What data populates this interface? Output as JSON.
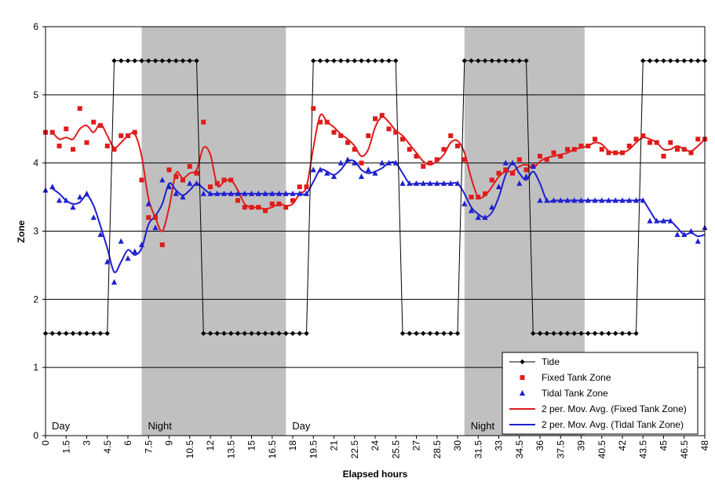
{
  "chart_data": {
    "type": "line",
    "title": "",
    "xlabel": "Elapsed hours",
    "ylabel": "Zone",
    "xlim": [
      0,
      48
    ],
    "ylim": [
      0,
      6
    ],
    "yticks": [
      "0",
      "1",
      "2",
      "3",
      "4",
      "5",
      "6"
    ],
    "xticks": [
      "0",
      "1.5",
      "3",
      "4.5",
      "6",
      "7.5",
      "9",
      "10.5",
      "12",
      "13.5",
      "15",
      "16.5",
      "18",
      "19.5",
      "21",
      "22.5",
      "24",
      "25.5",
      "27",
      "28.5",
      "30",
      "31.5",
      "33",
      "34.5",
      "36",
      "37.5",
      "39",
      "40.5",
      "42",
      "43.5",
      "45",
      "46.5",
      "48"
    ],
    "grid": "horizontal",
    "legend_position": "bottom-right",
    "bands": [
      {
        "label": "Day",
        "start": 0,
        "end": 7,
        "shaded": false
      },
      {
        "label": "Night",
        "start": 7,
        "end": 17.5,
        "shaded": true
      },
      {
        "label": "Day",
        "start": 17.5,
        "end": 30.5,
        "shaded": false
      },
      {
        "label": "Night",
        "start": 30.5,
        "end": 39.25,
        "shaded": true
      }
    ],
    "series": [
      {
        "name": "Tide",
        "type": "line-marker",
        "color": "#000000",
        "marker": "diamond",
        "points": [
          [
            0,
            1.5
          ],
          [
            0.5,
            1.5
          ],
          [
            1,
            1.5
          ],
          [
            1.5,
            1.5
          ],
          [
            2,
            1.5
          ],
          [
            2.5,
            1.5
          ],
          [
            3,
            1.5
          ],
          [
            3.5,
            1.5
          ],
          [
            4,
            1.5
          ],
          [
            4.5,
            1.5
          ],
          [
            5,
            5.5
          ],
          [
            5.5,
            5.5
          ],
          [
            6,
            5.5
          ],
          [
            6.5,
            5.5
          ],
          [
            7,
            5.5
          ],
          [
            7.5,
            5.5
          ],
          [
            8,
            5.5
          ],
          [
            8.5,
            5.5
          ],
          [
            9,
            5.5
          ],
          [
            9.5,
            5.5
          ],
          [
            10,
            5.5
          ],
          [
            10.5,
            5.5
          ],
          [
            11,
            5.5
          ],
          [
            11.5,
            1.5
          ],
          [
            12,
            1.5
          ],
          [
            12.5,
            1.5
          ],
          [
            13,
            1.5
          ],
          [
            13.5,
            1.5
          ],
          [
            14,
            1.5
          ],
          [
            14.5,
            1.5
          ],
          [
            15,
            1.5
          ],
          [
            15.5,
            1.5
          ],
          [
            16,
            1.5
          ],
          [
            16.5,
            1.5
          ],
          [
            17,
            1.5
          ],
          [
            17.5,
            1.5
          ],
          [
            18,
            1.5
          ],
          [
            18.5,
            1.5
          ],
          [
            19,
            1.5
          ],
          [
            19.5,
            5.5
          ],
          [
            20,
            5.5
          ],
          [
            20.5,
            5.5
          ],
          [
            21,
            5.5
          ],
          [
            21.5,
            5.5
          ],
          [
            22,
            5.5
          ],
          [
            22.5,
            5.5
          ],
          [
            23,
            5.5
          ],
          [
            23.5,
            5.5
          ],
          [
            24,
            5.5
          ],
          [
            24.5,
            5.5
          ],
          [
            25,
            5.5
          ],
          [
            25.5,
            5.5
          ],
          [
            26,
            1.5
          ],
          [
            26.5,
            1.5
          ],
          [
            27,
            1.5
          ],
          [
            27.5,
            1.5
          ],
          [
            28,
            1.5
          ],
          [
            28.5,
            1.5
          ],
          [
            29,
            1.5
          ],
          [
            29.5,
            1.5
          ],
          [
            30,
            1.5
          ],
          [
            30.5,
            5.5
          ],
          [
            31,
            5.5
          ],
          [
            31.5,
            5.5
          ],
          [
            32,
            5.5
          ],
          [
            32.5,
            5.5
          ],
          [
            33,
            5.5
          ],
          [
            33.5,
            5.5
          ],
          [
            34,
            5.5
          ],
          [
            34.5,
            5.5
          ],
          [
            35,
            5.5
          ],
          [
            35.5,
            1.5
          ],
          [
            36,
            1.5
          ],
          [
            36.5,
            1.5
          ],
          [
            37,
            1.5
          ],
          [
            37.5,
            1.5
          ],
          [
            38,
            1.5
          ],
          [
            38.5,
            1.5
          ],
          [
            39,
            1.5
          ],
          [
            39.5,
            1.5
          ],
          [
            40,
            1.5
          ],
          [
            40.5,
            1.5
          ],
          [
            41,
            1.5
          ],
          [
            41.5,
            1.5
          ],
          [
            42,
            1.5
          ],
          [
            42.5,
            1.5
          ],
          [
            43,
            1.5
          ],
          [
            43.5,
            5.5
          ],
          [
            44,
            5.5
          ],
          [
            44.5,
            5.5
          ],
          [
            45,
            5.5
          ],
          [
            45.5,
            5.5
          ],
          [
            46,
            5.5
          ],
          [
            46.5,
            5.5
          ],
          [
            47,
            5.5
          ],
          [
            47.5,
            5.5
          ],
          [
            48,
            5.5
          ]
        ]
      },
      {
        "name": "Fixed Tank Zone",
        "type": "scatter",
        "color": "#e01b1b",
        "marker": "square",
        "points": [
          [
            0,
            4.45
          ],
          [
            0.5,
            4.45
          ],
          [
            1,
            4.25
          ],
          [
            1.5,
            4.5
          ],
          [
            2,
            4.2
          ],
          [
            2.5,
            4.8
          ],
          [
            3,
            4.3
          ],
          [
            3.5,
            4.6
          ],
          [
            4,
            4.55
          ],
          [
            4.5,
            4.25
          ],
          [
            5,
            4.2
          ],
          [
            5.5,
            4.4
          ],
          [
            6,
            4.4
          ],
          [
            6.5,
            4.45
          ],
          [
            7,
            3.75
          ],
          [
            7.5,
            3.2
          ],
          [
            8,
            3.2
          ],
          [
            8.5,
            2.8
          ],
          [
            9,
            3.9
          ],
          [
            9.5,
            3.8
          ],
          [
            10,
            3.75
          ],
          [
            10.5,
            3.95
          ],
          [
            11,
            3.85
          ],
          [
            11.5,
            4.6
          ],
          [
            12,
            3.65
          ],
          [
            12.5,
            3.7
          ],
          [
            13,
            3.75
          ],
          [
            13.5,
            3.75
          ],
          [
            14,
            3.45
          ],
          [
            14.5,
            3.35
          ],
          [
            15,
            3.35
          ],
          [
            15.5,
            3.35
          ],
          [
            16,
            3.3
          ],
          [
            16.5,
            3.4
          ],
          [
            17,
            3.4
          ],
          [
            17.5,
            3.35
          ],
          [
            18,
            3.45
          ],
          [
            18.5,
            3.65
          ],
          [
            19,
            3.65
          ],
          [
            19.5,
            4.8
          ],
          [
            20,
            4.6
          ],
          [
            20.5,
            4.6
          ],
          [
            21,
            4.45
          ],
          [
            21.5,
            4.4
          ],
          [
            22,
            4.3
          ],
          [
            22.5,
            4.2
          ],
          [
            23,
            4
          ],
          [
            23.5,
            4.4
          ],
          [
            24,
            4.65
          ],
          [
            24.5,
            4.7
          ],
          [
            25,
            4.5
          ],
          [
            25.5,
            4.45
          ],
          [
            26,
            4.35
          ],
          [
            26.5,
            4.2
          ],
          [
            27,
            4.1
          ],
          [
            27.5,
            3.95
          ],
          [
            28,
            4
          ],
          [
            28.5,
            4.05
          ],
          [
            29,
            4.2
          ],
          [
            29.5,
            4.4
          ],
          [
            30,
            4.25
          ],
          [
            30.5,
            4.05
          ],
          [
            31,
            3.5
          ],
          [
            31.5,
            3.5
          ],
          [
            32,
            3.55
          ],
          [
            32.5,
            3.75
          ],
          [
            33,
            3.85
          ],
          [
            33.5,
            3.9
          ],
          [
            34,
            3.85
          ],
          [
            34.5,
            4.05
          ],
          [
            35,
            3.9
          ],
          [
            35.5,
            3.95
          ],
          [
            36,
            4.1
          ],
          [
            36.5,
            4.05
          ],
          [
            37,
            4.15
          ],
          [
            37.5,
            4.1
          ],
          [
            38,
            4.2
          ],
          [
            38.5,
            4.2
          ],
          [
            39,
            4.25
          ],
          [
            39.5,
            4.25
          ],
          [
            40,
            4.35
          ],
          [
            40.5,
            4.2
          ],
          [
            41,
            4.15
          ],
          [
            41.5,
            4.15
          ],
          [
            42,
            4.15
          ],
          [
            42.5,
            4.25
          ],
          [
            43,
            4.35
          ],
          [
            43.5,
            4.4
          ],
          [
            44,
            4.3
          ],
          [
            44.5,
            4.3
          ],
          [
            45,
            4.1
          ],
          [
            45.5,
            4.3
          ],
          [
            46,
            4.2
          ],
          [
            46.5,
            4.2
          ],
          [
            47,
            4.15
          ],
          [
            47.5,
            4.35
          ],
          [
            48,
            4.35
          ]
        ]
      },
      {
        "name": "Tidal Tank Zone",
        "type": "scatter",
        "color": "#1f1fd0",
        "marker": "triangle",
        "points": [
          [
            0,
            3.6
          ],
          [
            0.5,
            3.65
          ],
          [
            1,
            3.45
          ],
          [
            1.5,
            3.45
          ],
          [
            2,
            3.35
          ],
          [
            2.5,
            3.5
          ],
          [
            3,
            3.55
          ],
          [
            3.5,
            3.2
          ],
          [
            4,
            2.95
          ],
          [
            4.5,
            2.55
          ],
          [
            5,
            2.25
          ],
          [
            5.5,
            2.85
          ],
          [
            6,
            2.6
          ],
          [
            6.5,
            2.7
          ],
          [
            7,
            2.8
          ],
          [
            7.5,
            3.4
          ],
          [
            8,
            3.05
          ],
          [
            8.5,
            3.75
          ],
          [
            9,
            3.65
          ],
          [
            9.5,
            3.55
          ],
          [
            10,
            3.5
          ],
          [
            10.5,
            3.7
          ],
          [
            11,
            3.7
          ],
          [
            11.5,
            3.55
          ],
          [
            12,
            3.55
          ],
          [
            12.5,
            3.55
          ],
          [
            13,
            3.55
          ],
          [
            13.5,
            3.55
          ],
          [
            14,
            3.55
          ],
          [
            14.5,
            3.55
          ],
          [
            15,
            3.55
          ],
          [
            15.5,
            3.55
          ],
          [
            16,
            3.55
          ],
          [
            16.5,
            3.55
          ],
          [
            17,
            3.55
          ],
          [
            17.5,
            3.55
          ],
          [
            18,
            3.55
          ],
          [
            18.5,
            3.55
          ],
          [
            19,
            3.55
          ],
          [
            19.5,
            3.9
          ],
          [
            20,
            3.9
          ],
          [
            20.5,
            3.85
          ],
          [
            21,
            3.8
          ],
          [
            21.5,
            4
          ],
          [
            22,
            4.05
          ],
          [
            22.5,
            4
          ],
          [
            23,
            3.8
          ],
          [
            23.5,
            3.9
          ],
          [
            24,
            3.85
          ],
          [
            24.5,
            4
          ],
          [
            25,
            4
          ],
          [
            25.5,
            4
          ],
          [
            26,
            3.7
          ],
          [
            26.5,
            3.7
          ],
          [
            27,
            3.7
          ],
          [
            27.5,
            3.7
          ],
          [
            28,
            3.7
          ],
          [
            28.5,
            3.7
          ],
          [
            29,
            3.7
          ],
          [
            29.5,
            3.7
          ],
          [
            30,
            3.7
          ],
          [
            30.5,
            3.4
          ],
          [
            31,
            3.3
          ],
          [
            31.5,
            3.2
          ],
          [
            32,
            3.2
          ],
          [
            32.5,
            3.35
          ],
          [
            33,
            3.65
          ],
          [
            33.5,
            4
          ],
          [
            34,
            4
          ],
          [
            34.5,
            3.7
          ],
          [
            35,
            3.8
          ],
          [
            35.5,
            3.95
          ],
          [
            36,
            3.45
          ],
          [
            36.5,
            3.45
          ],
          [
            37,
            3.45
          ],
          [
            37.5,
            3.45
          ],
          [
            38,
            3.45
          ],
          [
            38.5,
            3.45
          ],
          [
            39,
            3.45
          ],
          [
            39.5,
            3.45
          ],
          [
            40,
            3.45
          ],
          [
            40.5,
            3.45
          ],
          [
            41,
            3.45
          ],
          [
            41.5,
            3.45
          ],
          [
            42,
            3.45
          ],
          [
            42.5,
            3.45
          ],
          [
            43,
            3.45
          ],
          [
            43.5,
            3.45
          ],
          [
            44,
            3.15
          ],
          [
            44.5,
            3.15
          ],
          [
            45,
            3.15
          ],
          [
            45.5,
            3.15
          ],
          [
            46,
            2.95
          ],
          [
            46.5,
            2.95
          ],
          [
            47,
            3
          ],
          [
            47.5,
            2.85
          ],
          [
            48,
            3.05
          ]
        ]
      },
      {
        "name": "2 per. Mov. Avg. (Fixed Tank Zone)",
        "type": "moving-average",
        "of": 1,
        "period": 2,
        "color": "#e01b1b"
      },
      {
        "name": "2 per. Mov. Avg. (Tidal Tank Zone)",
        "type": "moving-average",
        "of": 2,
        "period": 2,
        "color": "#1f1fd0"
      }
    ]
  }
}
